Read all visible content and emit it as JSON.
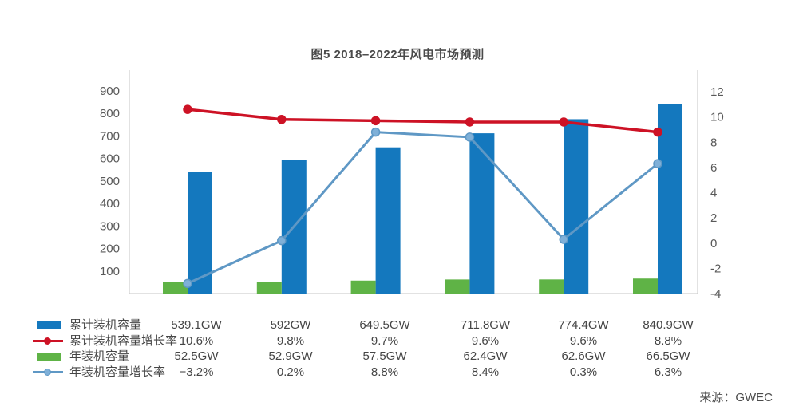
{
  "title": "图5 2018–2022年风电市场预测",
  "source": "来源：GWEC",
  "colors": {
    "axis_line": "#c6c6c6",
    "tick_text": "#595959",
    "table_text": "#454545",
    "cumulative_bar": "#1478be",
    "cumulative_growth": "#cd1225",
    "annual_bar": "#5fb346",
    "annual_growth": "#5f98c5",
    "annual_growth_dot": "#7fb0d8"
  },
  "chart_data": {
    "type": "bar+line combo",
    "n_categories": 6,
    "categories": [
      "",
      "",
      "",
      "",
      "",
      ""
    ],
    "title": "图5 2018–2022年风电市场预测",
    "grid": false,
    "legend_position": "bottom-left table",
    "left_axis": {
      "range": [
        0,
        900
      ],
      "ticks": [
        100,
        200,
        300,
        400,
        500,
        600,
        700,
        800,
        900
      ]
    },
    "right_axis": {
      "range": [
        -4,
        12
      ],
      "ticks": [
        -4,
        -2,
        0,
        2,
        4,
        6,
        8,
        10,
        12
      ]
    },
    "series": [
      {
        "key": "cumulative-capacity",
        "name": "累计装机容量",
        "type": "bar",
        "axis": "left",
        "bar_side": "right",
        "unit": "GW",
        "color": "#1478be",
        "values": [
          539.1,
          592,
          649.5,
          711.8,
          774.4,
          840.9
        ]
      },
      {
        "key": "annual-capacity",
        "name": "年装机容量",
        "type": "bar",
        "axis": "left",
        "bar_side": "left",
        "unit": "GW",
        "color": "#5fb346",
        "values": [
          52.5,
          52.9,
          57.5,
          62.4,
          62.6,
          66.5
        ]
      },
      {
        "key": "cumulative-growth-rate",
        "name": "累计装机容量增长率",
        "type": "line",
        "axis": "right",
        "unit": "%",
        "color": "#cd1225",
        "dot_fill": "#cd1225",
        "stroke_width": 3.5,
        "values": [
          10.6,
          9.8,
          9.7,
          9.6,
          9.6,
          8.8
        ]
      },
      {
        "key": "annual-growth-rate",
        "name": "年装机容量增长率",
        "type": "line",
        "axis": "right",
        "unit": "%",
        "color": "#5f98c5",
        "dot_fill": "#7fb0d8",
        "stroke_width": 3,
        "values": [
          -3.2,
          0.2,
          8.8,
          8.4,
          0.3,
          6.3
        ]
      }
    ]
  },
  "table": {
    "rows": [
      {
        "key": "cumulative-capacity",
        "label": "累计装机容量",
        "swatch": {
          "kind": "bar",
          "color": "#1478be"
        },
        "cells": [
          "539.1GW",
          "592GW",
          "649.5GW",
          "711.8GW",
          "774.4GW",
          "840.9GW"
        ]
      },
      {
        "key": "cumulative-growth-rate",
        "label": "累计装机容量增长率",
        "swatch": {
          "kind": "line",
          "color": "#cd1225",
          "dot": "#cd1225"
        },
        "cells": [
          "10.6%",
          "9.8%",
          "9.7%",
          "9.6%",
          "9.6%",
          "8.8%"
        ]
      },
      {
        "key": "annual-capacity",
        "label": "年装机容量",
        "swatch": {
          "kind": "bar",
          "color": "#5fb346"
        },
        "cells": [
          "52.5GW",
          "52.9GW",
          "57.5GW",
          "62.4GW",
          "62.6GW",
          "66.5GW"
        ]
      },
      {
        "key": "annual-growth-rate",
        "label": "年装机容量增长率",
        "swatch": {
          "kind": "line",
          "color": "#5f98c5",
          "dot": "#7fb0d8"
        },
        "cells": [
          "−3.2%",
          "0.2%",
          "8.8%",
          "8.4%",
          "0.3%",
          "6.3%"
        ]
      }
    ]
  }
}
